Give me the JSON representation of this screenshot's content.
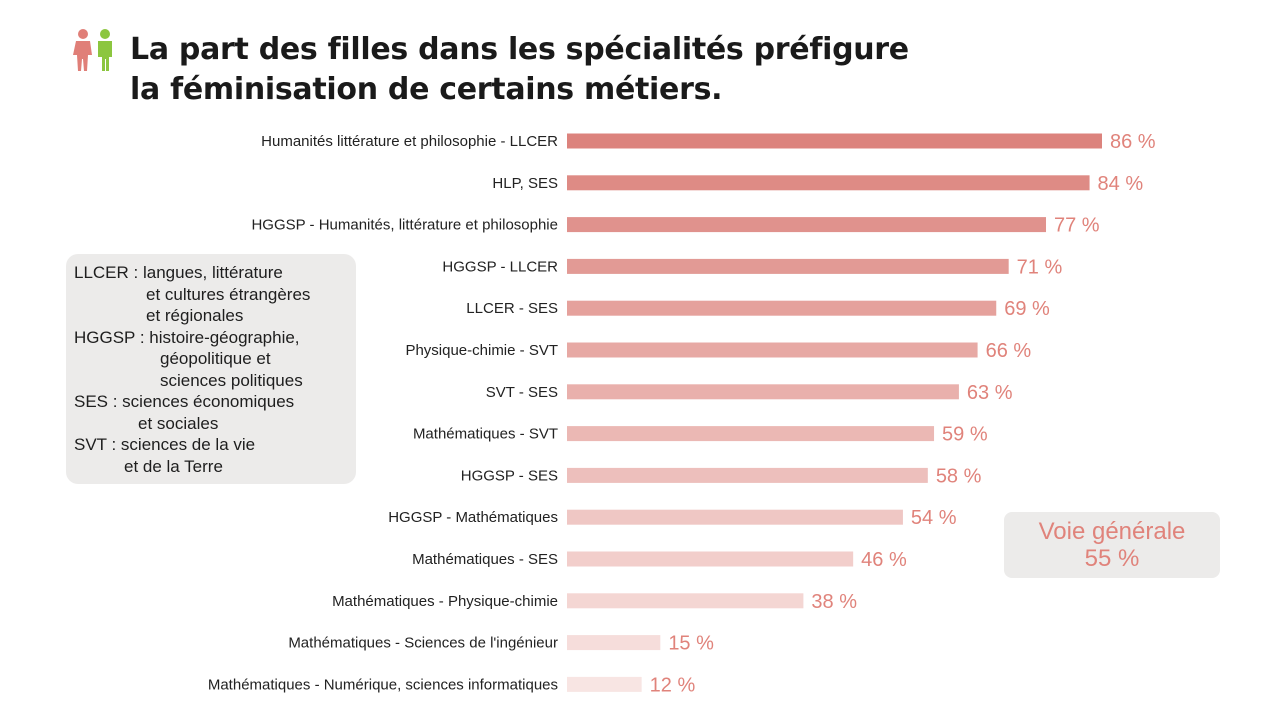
{
  "title": {
    "line1": "La part des filles dans les spécialités préfigure",
    "line2": "la féminisation de certains métiers."
  },
  "icon": "people-icon",
  "colors": {
    "female": "#e07f78",
    "male": "#8cc63f",
    "value_text": "#e0837b",
    "bar_gradient_dark": "#dc837d",
    "bar_gradient_light": "#f8e5e3"
  },
  "legend": [
    {
      "line": "LLCER : langues, littérature",
      "indent": 0
    },
    {
      "line": "et cultures étrangères",
      "indent": 1
    },
    {
      "line": "et régionales",
      "indent": 1
    },
    {
      "line": "HGGSP : histoire-géographie,",
      "indent": 0
    },
    {
      "line": "géopolitique et",
      "indent": 2
    },
    {
      "line": "sciences politiques",
      "indent": 2
    },
    {
      "line": "SES : sciences économiques",
      "indent": 0
    },
    {
      "line": "et sociales",
      "indent": 3
    },
    {
      "line": "SVT : sciences de la vie",
      "indent": 0
    },
    {
      "line": "et de la Terre",
      "indent": 4
    }
  ],
  "summary": {
    "label": "Voie générale",
    "value": "55 %"
  },
  "chart_data": {
    "type": "bar",
    "orientation": "horizontal",
    "categories": [
      "Humanités littérature et philosophie - LLCER",
      "HLP, SES",
      "HGGSP - Humanités, littérature et philosophie",
      "HGGSP - LLCER",
      "LLCER - SES",
      "Physique-chimie - SVT",
      "SVT - SES",
      "Mathématiques - SVT",
      "HGGSP - SES",
      "HGGSP - Mathématiques",
      "Mathématiques - SES",
      "Mathématiques - Physique-chimie",
      "Mathématiques - Sciences de l'ingénieur",
      "Mathématiques - Numérique, sciences informatiques"
    ],
    "values": [
      86,
      84,
      77,
      71,
      69,
      66,
      63,
      59,
      58,
      54,
      46,
      38,
      15,
      12
    ],
    "value_labels": [
      "86 %",
      "84 %",
      "77 %",
      "71 %",
      "69 %",
      "66 %",
      "63 %",
      "59 %",
      "58 %",
      "54 %",
      "46 %",
      "38 %",
      "15 %",
      "12 %"
    ],
    "unit": "%",
    "xlim": [
      0,
      86
    ],
    "grid": false,
    "axes_visible": false
  }
}
